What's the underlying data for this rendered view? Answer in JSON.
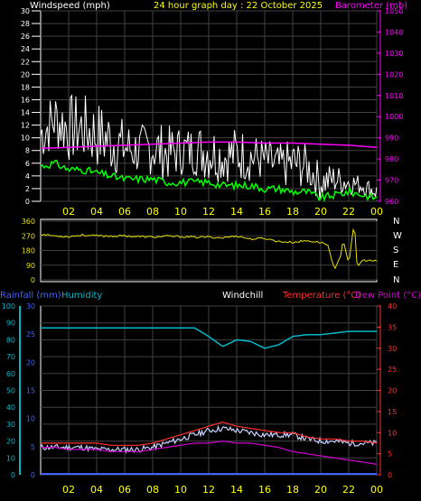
{
  "colors": {
    "windspeed": "#ffffff",
    "gust_mean": "#00ff00",
    "barometer": "#ff00ff",
    "direction": "#e8e000",
    "humidity": "#00b8c8",
    "temperature": "#ff3030",
    "dewpoint": "#d000d0",
    "windchill": "#c8d0ff",
    "rainfall": "#4060ff",
    "title": "#ffff00",
    "grid": "#404040",
    "axis": "#ffffff"
  },
  "header": {
    "windspeed_label": "Windspeed (mph)",
    "title": "24 hour graph day : 22 October 2025",
    "barometer_label": "Barometer (mb)"
  },
  "middle": {
    "compass": [
      "N",
      "W",
      "S",
      "E",
      "N"
    ]
  },
  "lower_header": {
    "rainfall_label": "Rainfall (mm)",
    "humidity_label": "Humidity",
    "windchill_label": "Windchill",
    "temperature_label": "Temperature (°C)",
    "dewpoint_label": "Dew Point (°C)"
  },
  "chart_data": [
    {
      "type": "line",
      "xlabel": "",
      "x_ticks": [
        "02",
        "04",
        "06",
        "08",
        "10",
        "12",
        "14",
        "16",
        "18",
        "20",
        "22",
        "00"
      ],
      "ylim": [
        0,
        30
      ],
      "y_ticks": [
        "0",
        "2",
        "4",
        "6",
        "8",
        "10",
        "12",
        "14",
        "16",
        "18",
        "20",
        "22",
        "24",
        "26",
        "28",
        "30"
      ],
      "y2lim": [
        960,
        1050
      ],
      "y2_ticks": [
        "960",
        "970",
        "980",
        "990",
        "1000",
        "1010",
        "1020",
        "1030",
        "1040",
        "1050"
      ],
      "grid": true,
      "series": [
        {
          "name": "Windspeed (mph)",
          "axis": "y",
          "style": "band",
          "hours": [
            0,
            1,
            2,
            3,
            4,
            5,
            6,
            7,
            8,
            9,
            10,
            11,
            12,
            13,
            14,
            15,
            16,
            17,
            18,
            19,
            20,
            21,
            22,
            23,
            24
          ],
          "low": [
            6,
            8,
            6,
            6,
            5,
            4,
            4,
            4,
            4,
            3,
            4,
            4,
            3,
            3,
            3,
            3,
            3,
            2,
            2,
            2,
            0,
            1,
            1,
            1,
            0
          ],
          "high": [
            15,
            18,
            17,
            17,
            16,
            15,
            13,
            12,
            13,
            12,
            12,
            12,
            13,
            11,
            12,
            11,
            10,
            9,
            10,
            9,
            6,
            6,
            5,
            4,
            3
          ]
        },
        {
          "name": "Average",
          "axis": "y",
          "hours": [
            0,
            1,
            2,
            3,
            4,
            5,
            6,
            7,
            8,
            9,
            10,
            11,
            12,
            13,
            14,
            15,
            16,
            17,
            18,
            19,
            20,
            21,
            22,
            23,
            24
          ],
          "values": [
            5.5,
            6,
            5,
            5,
            4.5,
            4,
            3.5,
            3.5,
            3.5,
            3,
            3,
            3,
            3,
            2.5,
            2.5,
            2.5,
            2,
            2,
            1.5,
            1.5,
            0.5,
            1,
            1.5,
            1,
            0.5
          ]
        },
        {
          "name": "Barometer (mb)",
          "axis": "y2",
          "hours": [
            0,
            2,
            4,
            6,
            8,
            10,
            12,
            14,
            16,
            18,
            20,
            22,
            24
          ],
          "values": [
            985,
            985.5,
            986,
            986.5,
            987,
            987.5,
            988,
            988,
            987.5,
            987.5,
            987,
            986.5,
            985.5
          ]
        }
      ]
    },
    {
      "type": "line",
      "x_ticks": [
        "02",
        "04",
        "06",
        "08",
        "10",
        "12",
        "14",
        "16",
        "18",
        "20",
        "22",
        "00"
      ],
      "ylim": [
        0,
        360
      ],
      "y_ticks": [
        "0",
        "90",
        "180",
        "270",
        "360"
      ],
      "series": [
        {
          "name": "Wind direction",
          "hours": [
            0,
            1,
            2,
            3,
            4,
            5,
            6,
            7,
            8,
            9,
            10,
            11,
            12,
            13,
            14,
            15,
            16,
            17,
            18,
            19,
            20,
            20.5,
            21,
            21.4,
            21.6,
            22,
            22.4,
            22.6,
            23,
            24
          ],
          "values": [
            280,
            270,
            265,
            275,
            270,
            268,
            270,
            265,
            262,
            268,
            265,
            262,
            262,
            258,
            270,
            250,
            255,
            235,
            230,
            240,
            230,
            215,
            60,
            140,
            250,
            100,
            350,
            80,
            120,
            115
          ]
        }
      ]
    },
    {
      "type": "line",
      "x_ticks": [
        "02",
        "04",
        "06",
        "08",
        "10",
        "12",
        "14",
        "16",
        "18",
        "20",
        "22",
        "00"
      ],
      "ylim": [
        0,
        100
      ],
      "y_ticks": [
        "0",
        "10",
        "20",
        "30",
        "40",
        "50",
        "60",
        "70",
        "80",
        "90",
        "100"
      ],
      "y2lim": [
        0,
        30
      ],
      "y2_ticks": [
        "0",
        "5",
        "10",
        "15",
        "20",
        "25",
        "30"
      ],
      "y3lim": [
        0,
        40
      ],
      "y3_ticks": [
        "0",
        "5",
        "10",
        "15",
        "20",
        "25",
        "30",
        "35",
        "40"
      ],
      "series": [
        {
          "name": "Rainfall (mm)",
          "axis": "y2",
          "hours": [
            0,
            24
          ],
          "values": [
            0,
            0
          ]
        },
        {
          "name": "Humidity",
          "axis": "y",
          "hours": [
            0,
            1,
            2,
            3,
            4,
            5,
            6,
            7,
            8,
            9,
            10,
            11,
            12,
            13,
            14,
            15,
            16,
            17,
            18,
            19,
            20,
            21,
            22,
            23,
            24
          ],
          "values": [
            87,
            87,
            87,
            87,
            87,
            87,
            87,
            87,
            87,
            87,
            87,
            87,
            82,
            76,
            80,
            79,
            75,
            77,
            82,
            83,
            83,
            84,
            85,
            85,
            85
          ]
        },
        {
          "name": "Temperature (°C)",
          "axis": "y3",
          "hours": [
            0,
            1,
            2,
            3,
            4,
            5,
            6,
            7,
            8,
            9,
            10,
            11,
            12,
            13,
            14,
            15,
            16,
            17,
            18,
            19,
            20,
            21,
            22,
            23,
            24
          ],
          "values": [
            7.5,
            7.5,
            7.5,
            7.5,
            7.5,
            7,
            7,
            7,
            7.5,
            8.5,
            9.5,
            10.5,
            11.5,
            12.5,
            11.5,
            11,
            10.5,
            10,
            10,
            9,
            8.5,
            8.5,
            8,
            8,
            7.5
          ]
        },
        {
          "name": "Dew Point (°C)",
          "axis": "y3",
          "hours": [
            0,
            1,
            2,
            3,
            4,
            5,
            6,
            7,
            8,
            9,
            10,
            11,
            12,
            13,
            14,
            15,
            16,
            17,
            18,
            19,
            20,
            21,
            22,
            23,
            24
          ],
          "values": [
            6.5,
            6.5,
            6,
            6,
            6,
            5.5,
            5.5,
            5.5,
            6,
            6.5,
            7,
            7.5,
            7.5,
            8,
            7.5,
            7.5,
            7,
            6.5,
            5.5,
            5,
            4.5,
            4,
            3.5,
            3,
            2.5
          ]
        },
        {
          "name": "Windchill",
          "axis": "y3",
          "hours": [
            0,
            1,
            2,
            3,
            4,
            5,
            6,
            7,
            8,
            9,
            10,
            11,
            12,
            13,
            14,
            15,
            16,
            17,
            18,
            19,
            20,
            21,
            22,
            23,
            24
          ],
          "values": [
            6.5,
            6.5,
            6.5,
            6.5,
            6,
            6,
            6,
            6,
            6.5,
            7.5,
            8.5,
            9.5,
            10.5,
            11,
            10.5,
            10,
            9.5,
            9.5,
            9.5,
            8.5,
            8,
            8,
            7.5,
            7.5,
            7.5
          ]
        }
      ]
    }
  ]
}
